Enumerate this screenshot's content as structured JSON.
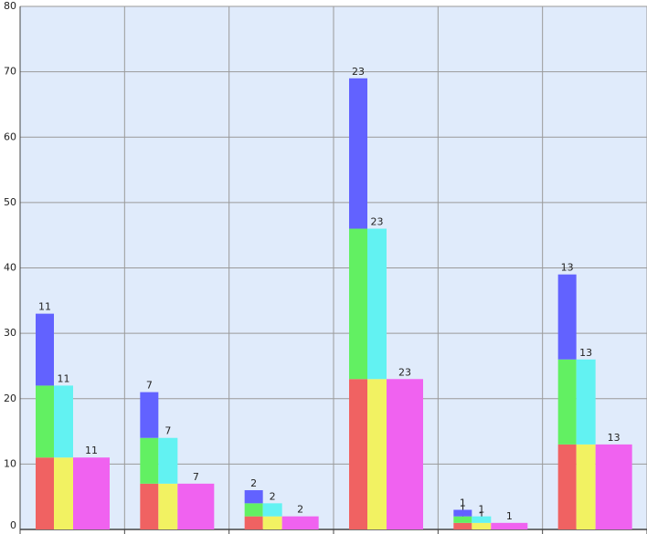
{
  "chart_data": {
    "type": "grouped-stacked-bar",
    "categories": [
      null,
      null,
      null,
      null,
      null,
      null
    ],
    "stacks": [
      {
        "series": [
          {
            "color": "#f06262",
            "values": [
              11,
              7,
              2,
              23,
              1,
              13
            ]
          },
          {
            "color": "#62f062",
            "values": [
              11,
              7,
              2,
              23,
              1,
              13
            ]
          },
          {
            "color": "#6262ff",
            "values": [
              11,
              7,
              2,
              23,
              1,
              13
            ]
          }
        ]
      },
      {
        "series": [
          {
            "color": "#f2f262",
            "values": [
              11,
              7,
              2,
              23,
              1,
              13
            ]
          },
          {
            "color": "#62f2f2",
            "values": [
              11,
              7,
              2,
              23,
              1,
              13
            ]
          }
        ]
      },
      {
        "series": [
          {
            "color": "#f062f0",
            "values": [
              11,
              7,
              2,
              23,
              1,
              13
            ]
          }
        ]
      }
    ],
    "ylim": [
      0,
      80
    ],
    "yticks": [
      0,
      10,
      20,
      30,
      40,
      50,
      60,
      70,
      80
    ],
    "grid": true
  }
}
